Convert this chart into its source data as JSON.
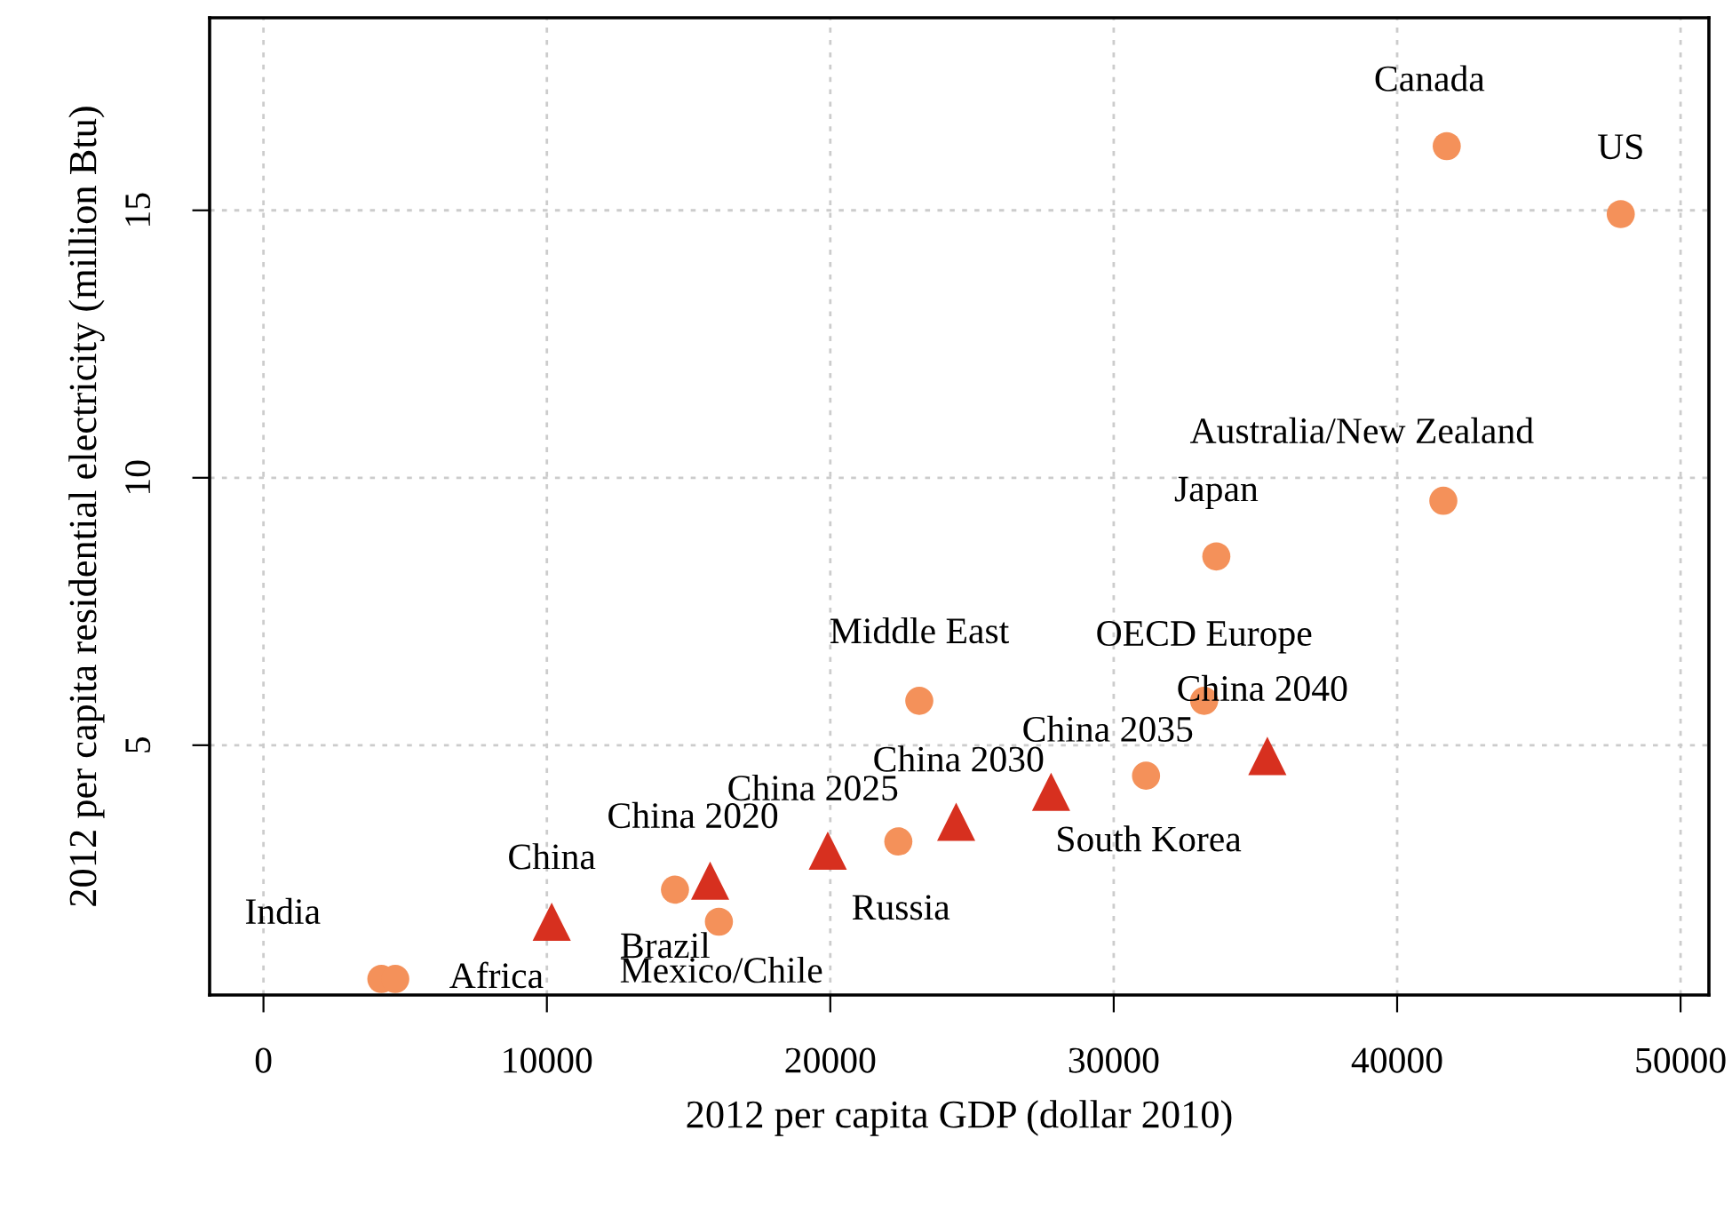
{
  "chart_data": {
    "type": "scatter",
    "xlabel": "2012 per capita GDP (dollar 2010)",
    "ylabel": "2012 per capita residential electricity (million Btu)",
    "xlim": [
      -1900,
      51000
    ],
    "ylim": [
      0.33,
      18.6
    ],
    "xticks": [
      0,
      10000,
      20000,
      30000,
      40000,
      50000
    ],
    "yticks": [
      5,
      10,
      15
    ],
    "grid": true,
    "series": [
      {
        "color": "#f4915a",
        "marker": "circle",
        "x": [
          4160,
          4650,
          14520,
          16070,
          22400,
          23140,
          31140,
          33190,
          33620,
          41630,
          41750,
          47890
        ],
        "values": [
          0.63,
          0.63,
          2.3,
          1.7,
          3.2,
          5.83,
          4.43,
          5.83,
          8.53,
          9.57,
          16.2,
          14.93
        ]
      },
      {
        "color": "#d7301f",
        "marker": "triangle",
        "x": [
          10170,
          15760,
          19910,
          24440,
          27790,
          35420
        ],
        "values": [
          1.7,
          2.47,
          3.03,
          3.57,
          4.13,
          4.8
        ]
      }
    ],
    "annotations": [
      {
        "text": "India",
        "x": 4160,
        "y": 0.63
      },
      {
        "text": "Africa",
        "x": 4650,
        "y": 0.63
      },
      {
        "text": "Brazil",
        "x": 14520,
        "y": 2.3
      },
      {
        "text": "Mexico/Chile",
        "x": 16070,
        "y": 1.7
      },
      {
        "text": "Russia",
        "x": 22400,
        "y": 3.2
      },
      {
        "text": "Middle East",
        "x": 23140,
        "y": 5.83
      },
      {
        "text": "South Korea",
        "x": 31140,
        "y": 4.43
      },
      {
        "text": "OECD Europe",
        "x": 33190,
        "y": 5.83
      },
      {
        "text": "Japan",
        "x": 33620,
        "y": 8.53
      },
      {
        "text": "Australia/New Zealand",
        "x": 41630,
        "y": 9.57
      },
      {
        "text": "Canada",
        "x": 41750,
        "y": 16.2
      },
      {
        "text": "US",
        "x": 47890,
        "y": 14.93
      },
      {
        "text": "China",
        "x": 10170,
        "y": 1.7
      },
      {
        "text": "China 2020",
        "x": 15760,
        "y": 2.47
      },
      {
        "text": "China 2025",
        "x": 19910,
        "y": 3.03
      },
      {
        "text": "China 2030",
        "x": 24440,
        "y": 3.57
      },
      {
        "text": "China 2035",
        "x": 27790,
        "y": 4.13
      },
      {
        "text": "China 2040",
        "x": 35420,
        "y": 4.8
      }
    ]
  }
}
